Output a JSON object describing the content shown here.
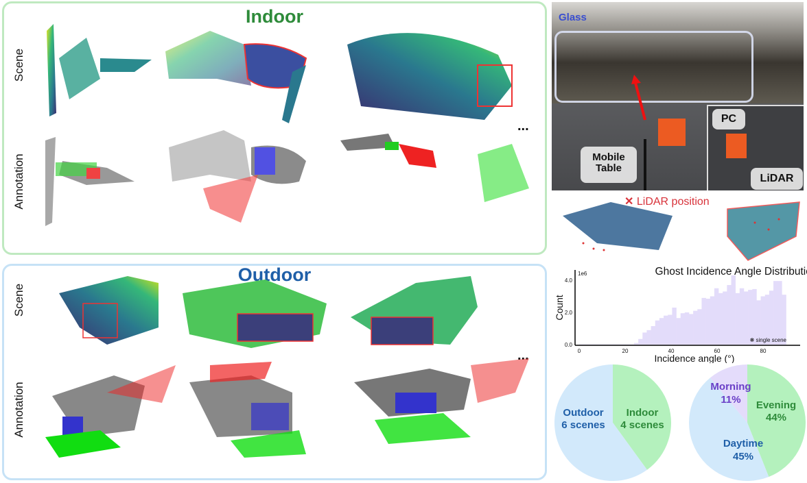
{
  "indoor": {
    "title": "Indoor",
    "row_labels": [
      "Scene",
      "Annotation"
    ],
    "ellipsis": "..."
  },
  "outdoor": {
    "title": "Outdoor",
    "row_labels": [
      "Scene",
      "Annotation"
    ],
    "ellipsis": "..."
  },
  "photo": {
    "glass_label": "Glass",
    "pc_label": "PC",
    "mobile_table_label": "Mobile\nTable",
    "lidar_label": "LiDAR"
  },
  "lidar_position": {
    "marker": "✕",
    "label": "LiDAR position"
  },
  "colors": {
    "indoor": "#2e8b3a",
    "outdoor": "#1f5fa8",
    "morning": "#6a3fc7",
    "hist": "#e3dcfa",
    "pie_blue": "#d2e9fb",
    "pie_green": "#b4f1bd",
    "pie_purple": "#e4dcfb",
    "lidar_red": "#d8323a"
  },
  "chart_data": [
    {
      "type": "bar",
      "title": "Ghost Incidence Angle Distribution",
      "xlabel": "Incidence angle (°)",
      "ylabel": "Count",
      "y_scale_label": "1e6",
      "annotation": "❋ single scene",
      "xlim": [
        0,
        92
      ],
      "ylim": [
        0,
        4.3
      ],
      "xticks": [
        "0",
        "20",
        "40",
        "60",
        "80"
      ],
      "yticks": [
        "0.0",
        "2.0",
        "4.0"
      ],
      "bin_start": 0,
      "bin_end": 90,
      "values": [
        0.02,
        0.02,
        0.02,
        0.02,
        0.02,
        0.02,
        0.02,
        0.02,
        0.02,
        0.02,
        0.02,
        0.02,
        0.02,
        0.1,
        0.35,
        0.75,
        0.9,
        1.15,
        1.5,
        1.65,
        1.8,
        1.85,
        2.3,
        1.65,
        1.95,
        2.0,
        1.9,
        2.1,
        2.2,
        2.9,
        2.85,
        3.0,
        3.5,
        3.2,
        3.3,
        3.7,
        4.3,
        3.2,
        3.5,
        3.3,
        3.4,
        3.45,
        2.75,
        3.0,
        3.1,
        3.35,
        3.95,
        3.95,
        3.1
      ]
    },
    {
      "type": "pie",
      "slices": [
        {
          "label": "Indoor",
          "sub": "4 scenes",
          "value": 4
        },
        {
          "label": "Outdoor",
          "sub": "6 scenes",
          "value": 6
        }
      ]
    },
    {
      "type": "pie",
      "slices": [
        {
          "label": "Evening",
          "sub": "44%",
          "value": 44
        },
        {
          "label": "Daytime",
          "sub": "45%",
          "value": 45
        },
        {
          "label": "Morning",
          "sub": "11%",
          "value": 11
        }
      ]
    }
  ]
}
